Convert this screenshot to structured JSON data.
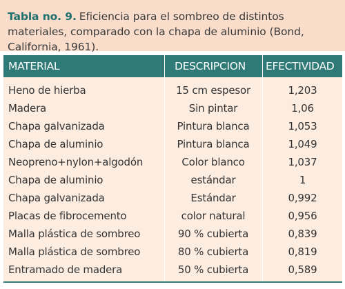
{
  "caption": {
    "label": "Tabla no. 9.",
    "text": "Eficiencia para el sombreo de distintos materiales, comparado con la chapa de aluminio (Bond, California, 1961)."
  },
  "table": {
    "headers": {
      "material": "MATERIAL",
      "descripcion": "DESCRIPCION",
      "efectividad": "EFECTIVIDAD"
    },
    "rows": [
      {
        "material": "Heno de hierba",
        "descripcion": "15 cm espesor",
        "efectividad": "1,203"
      },
      {
        "material": "Madera",
        "descripcion": "Sin pintar",
        "efectividad": "1,06"
      },
      {
        "material": "Chapa galvanizada",
        "descripcion": "Pintura blanca",
        "efectividad": "1,053"
      },
      {
        "material": "Chapa de aluminio",
        "descripcion": "Pintura blanca",
        "efectividad": "1,049"
      },
      {
        "material": "Neopreno+nylon+algodón",
        "descripcion": "Color blanco",
        "efectividad": "1,037"
      },
      {
        "material": "Chapa de aluminio",
        "descripcion": "estándar",
        "efectividad": "1"
      },
      {
        "material": "Chapa galvanizada",
        "descripcion": "Estándar",
        "efectividad": "0,992"
      },
      {
        "material": "Placas de fibrocemento",
        "descripcion": "color natural",
        "efectividad": "0,956"
      },
      {
        "material": "Malla plástica de sombreo",
        "descripcion": "90 % cubierta",
        "efectividad": "0,839"
      },
      {
        "material": "Malla plástica de sombreo",
        "descripcion": "80 % cubierta",
        "efectividad": "0,819"
      },
      {
        "material": "Entramado de madera",
        "descripcion": "50 % cubierta",
        "efectividad": "0,589"
      }
    ]
  },
  "colors": {
    "caption_background": "#f9dcc9",
    "header_background": "#2f7a76",
    "table_background": "#fdece0",
    "label_color": "#1f6f6d"
  }
}
